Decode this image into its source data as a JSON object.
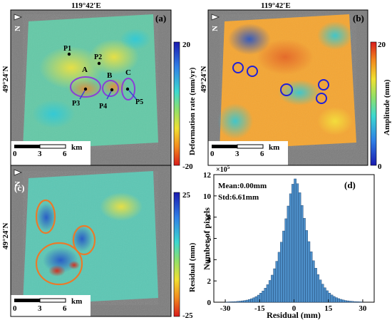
{
  "panels": {
    "a": {
      "label": "(a)",
      "top_coord": "119°42′E",
      "left_coord": "49°24′N",
      "north": "N",
      "scale": {
        "ticks": [
          "0",
          "3",
          "6"
        ],
        "unit": "km"
      },
      "colorbar": {
        "label": "Deformation rate (mm/yr)",
        "max": "20",
        "min": "-20"
      },
      "points": [
        "P1",
        "P2",
        "P3",
        "P4",
        "P5"
      ],
      "regions": [
        "A",
        "B",
        "C"
      ]
    },
    "b": {
      "label": "(b)",
      "top_coord": "119°42′E",
      "left_coord": "49°24′N",
      "north": "N",
      "scale": {
        "ticks": [
          "0",
          "3",
          "6"
        ],
        "unit": "km"
      },
      "colorbar": {
        "label": "Amplitude (mm)",
        "max": "20",
        "min": "0"
      }
    },
    "c": {
      "label": "(c)",
      "left_coord": "49°24′N",
      "north": "N",
      "scale": {
        "ticks": [
          "0",
          "3",
          "6"
        ],
        "unit": "km"
      },
      "colorbar": {
        "label": "Residual (mm)",
        "max": "25",
        "min": "-25"
      }
    },
    "d": {
      "label": "(d)",
      "stats": {
        "mean": "Mean:0.00mm",
        "std": "Std:6.61mm"
      }
    }
  },
  "chart_data": {
    "type": "bar",
    "subtype": "histogram",
    "xlabel": "Residual (mm)",
    "ylabel": "Number of pixels",
    "y_multiplier": "×10",
    "y_exponent": "5",
    "xlim": [
      -35,
      35
    ],
    "ylim": [
      0,
      12
    ],
    "xticks": [
      "-30",
      "-15",
      "0",
      "15",
      "30"
    ],
    "yticks": [
      "0",
      "2",
      "4",
      "6",
      "8",
      "10",
      "12"
    ],
    "bin_width": 1,
    "bin_start": -30,
    "values": [
      0.02,
      0.03,
      0.04,
      0.05,
      0.06,
      0.08,
      0.1,
      0.13,
      0.16,
      0.2,
      0.26,
      0.33,
      0.42,
      0.53,
      0.67,
      0.85,
      1.06,
      1.32,
      1.65,
      2.05,
      2.55,
      3.15,
      3.85,
      4.7,
      5.65,
      6.7,
      7.85,
      9.05,
      10.2,
      11.1,
      11.6,
      11.15,
      10.3,
      9.1,
      7.9,
      6.75,
      5.7,
      4.75,
      3.9,
      3.2,
      2.6,
      2.1,
      1.7,
      1.36,
      1.08,
      0.86,
      0.68,
      0.54,
      0.43,
      0.34,
      0.27,
      0.21,
      0.16,
      0.13,
      0.1,
      0.08,
      0.06,
      0.05,
      0.04,
      0.03
    ]
  }
}
